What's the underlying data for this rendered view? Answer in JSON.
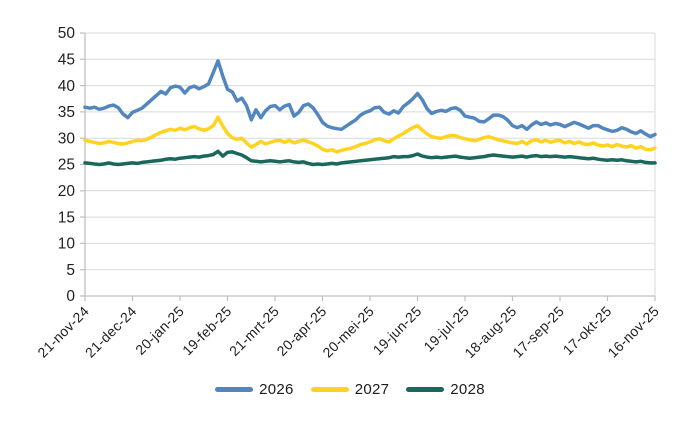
{
  "chart_data": {
    "type": "line",
    "title": "",
    "grid": true,
    "legend_position": "bottom",
    "x_axis": {
      "tick_labels": [
        "21-nov-24",
        "21-dec-24",
        "20-jan-25",
        "19-feb-25",
        "21-mrt-25",
        "20-apr-25",
        "20-mei-25",
        "19-jun-25",
        "19-jul-25",
        "18-aug-25",
        "17-sep-25",
        "17-okt-25",
        "16-nov-25"
      ],
      "tick_interval_days": 30,
      "total_days": 360,
      "sample_interval_days": 3
    },
    "y_axis": {
      "min": 0,
      "max": 50,
      "tick_step": 5,
      "tick_labels": [
        "0",
        "5",
        "10",
        "15",
        "20",
        "25",
        "30",
        "35",
        "40",
        "45",
        "50"
      ]
    },
    "series": [
      {
        "name": "2026",
        "color": "#5286BF",
        "values": [
          35.9,
          35.7,
          35.9,
          35.5,
          35.7,
          36.1,
          36.3,
          35.8,
          34.6,
          33.9,
          34.9,
          35.3,
          35.7,
          36.5,
          37.3,
          38.1,
          38.9,
          38.4,
          39.6,
          39.9,
          39.7,
          38.6,
          39.6,
          39.9,
          39.4,
          39.8,
          40.3,
          42.5,
          44.7,
          41.8,
          39.3,
          38.8,
          37.1,
          37.6,
          36.2,
          33.5,
          35.4,
          33.9,
          35.2,
          36.0,
          36.2,
          35.4,
          36.1,
          36.4,
          34.2,
          34.9,
          36.2,
          36.5,
          35.8,
          34.5,
          33.0,
          32.3,
          32.0,
          31.8,
          31.7,
          32.3,
          32.9,
          33.5,
          34.4,
          34.9,
          35.2,
          35.8,
          35.9,
          34.9,
          34.6,
          35.2,
          34.8,
          36.0,
          36.7,
          37.5,
          38.5,
          37.3,
          35.6,
          34.7,
          35.1,
          35.3,
          35.1,
          35.6,
          35.8,
          35.3,
          34.2,
          34.0,
          33.8,
          33.2,
          33.1,
          33.7,
          34.4,
          34.4,
          34.1,
          33.4,
          32.4,
          32.0,
          32.4,
          31.7,
          32.5,
          33.1,
          32.6,
          32.9,
          32.5,
          32.8,
          32.6,
          32.2,
          32.6,
          33.0,
          32.7,
          32.3,
          31.9,
          32.4,
          32.4,
          31.9,
          31.6,
          31.3,
          31.5,
          32.0,
          31.7,
          31.2,
          30.9,
          31.4,
          30.8,
          30.3,
          30.7
        ]
      },
      {
        "name": "2027",
        "color": "#FFD320",
        "values": [
          29.6,
          29.4,
          29.2,
          29.0,
          29.1,
          29.4,
          29.2,
          29.0,
          28.9,
          29.1,
          29.4,
          29.6,
          29.5,
          29.8,
          30.2,
          30.7,
          31.1,
          31.4,
          31.7,
          31.5,
          31.9,
          31.6,
          32.0,
          32.2,
          31.8,
          31.5,
          31.8,
          32.4,
          34.0,
          32.3,
          30.9,
          30.1,
          29.8,
          30.0,
          29.1,
          28.3,
          28.8,
          29.4,
          28.9,
          29.2,
          29.5,
          29.6,
          29.2,
          29.6,
          29.1,
          29.4,
          29.7,
          29.3,
          29.0,
          28.5,
          27.9,
          27.6,
          27.8,
          27.4,
          27.7,
          27.9,
          28.1,
          28.4,
          28.8,
          29.0,
          29.3,
          29.7,
          29.9,
          29.5,
          29.3,
          29.9,
          30.4,
          30.9,
          31.5,
          32.0,
          32.4,
          31.5,
          30.8,
          30.3,
          30.1,
          30.0,
          30.3,
          30.5,
          30.5,
          30.1,
          29.9,
          29.7,
          29.5,
          29.8,
          30.1,
          30.3,
          30.0,
          29.7,
          29.5,
          29.3,
          29.1,
          29.0,
          29.4,
          28.9,
          29.5,
          29.7,
          29.3,
          29.6,
          29.2,
          29.5,
          29.6,
          29.1,
          29.4,
          29.0,
          29.3,
          28.9,
          28.8,
          29.1,
          28.7,
          28.5,
          28.7,
          28.4,
          28.8,
          28.5,
          28.3,
          28.6,
          28.1,
          28.4,
          27.9,
          27.8,
          28.1
        ]
      },
      {
        "name": "2028",
        "color": "#1A685C",
        "values": [
          25.3,
          25.2,
          25.1,
          25.0,
          25.1,
          25.3,
          25.1,
          25.0,
          25.1,
          25.2,
          25.3,
          25.2,
          25.4,
          25.5,
          25.6,
          25.7,
          25.8,
          26.0,
          26.1,
          26.0,
          26.2,
          26.3,
          26.4,
          26.5,
          26.4,
          26.6,
          26.7,
          26.9,
          27.5,
          26.6,
          27.3,
          27.4,
          27.1,
          26.8,
          26.3,
          25.7,
          25.6,
          25.5,
          25.6,
          25.7,
          25.6,
          25.5,
          25.6,
          25.7,
          25.5,
          25.4,
          25.5,
          25.2,
          25.0,
          25.1,
          25.0,
          25.1,
          25.2,
          25.1,
          25.3,
          25.4,
          25.5,
          25.6,
          25.7,
          25.8,
          25.9,
          26.0,
          26.1,
          26.2,
          26.3,
          26.5,
          26.4,
          26.5,
          26.5,
          26.7,
          27.0,
          26.6,
          26.4,
          26.3,
          26.4,
          26.3,
          26.4,
          26.5,
          26.6,
          26.4,
          26.3,
          26.2,
          26.3,
          26.4,
          26.5,
          26.7,
          26.8,
          26.7,
          26.6,
          26.5,
          26.4,
          26.5,
          26.6,
          26.4,
          26.6,
          26.7,
          26.5,
          26.6,
          26.5,
          26.6,
          26.5,
          26.4,
          26.5,
          26.4,
          26.3,
          26.2,
          26.1,
          26.2,
          26.0,
          25.9,
          25.8,
          25.9,
          25.8,
          25.9,
          25.7,
          25.6,
          25.5,
          25.6,
          25.4,
          25.3,
          25.3
        ]
      }
    ],
    "colors": {
      "gridline": "#D9D9D9",
      "axis": "#BFBFBF",
      "label": "#1F1F1F",
      "background": "#FFFFFF"
    }
  }
}
